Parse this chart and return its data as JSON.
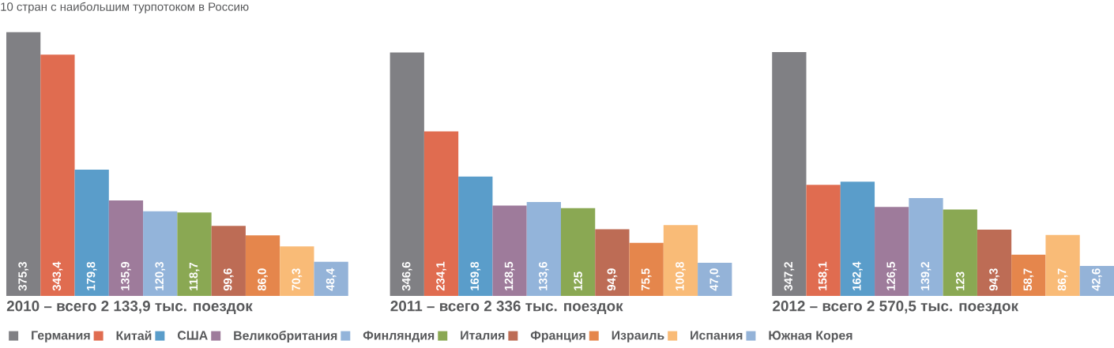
{
  "chart_data": [
    {
      "type": "bar",
      "title": "10 стран с наибольшим турпотоком в Россию",
      "xlabel": "2010 – всего 2 133,9 тыс. поездок",
      "legend": "bottom",
      "categories": [
        null
      ],
      "series": [
        {
          "name": "Германия",
          "color": "#808084",
          "values": [
            375.3
          ],
          "value_labels": [
            "375,3"
          ]
        },
        {
          "name": "Китай",
          "color": "#e06c50",
          "values": [
            343.4
          ],
          "value_labels": [
            "343,4"
          ]
        },
        {
          "name": "США",
          "color": "#5a9dca",
          "values": [
            179.8
          ],
          "value_labels": [
            "179,8"
          ]
        },
        {
          "name": "Великобритания",
          "color": "#9e7b9b",
          "values": [
            135.9
          ],
          "value_labels": [
            "135,9"
          ]
        },
        {
          "name": "Финляндия",
          "color": "#93b4da",
          "values": [
            120.3
          ],
          "value_labels": [
            "120,3"
          ]
        },
        {
          "name": "Италия",
          "color": "#8aa853",
          "values": [
            118.7
          ],
          "value_labels": [
            "118,7"
          ]
        },
        {
          "name": "Франция",
          "color": "#bd6c55",
          "values": [
            99.6
          ],
          "value_labels": [
            "99,6"
          ]
        },
        {
          "name": "Израиль",
          "color": "#e5864c",
          "values": [
            86.0
          ],
          "value_labels": [
            "86,0"
          ]
        },
        {
          "name": "Испания",
          "color": "#f9bb77",
          "values": [
            70.3
          ],
          "value_labels": [
            "70,3"
          ]
        },
        {
          "name": "Южная Корея",
          "color": "#94b3d8",
          "values": [
            48.4
          ],
          "value_labels": [
            "48,4"
          ]
        }
      ]
    },
    {
      "type": "bar",
      "xlabel": "2011 – всего 2 336 тыс. поездок",
      "categories": [
        null
      ],
      "series": [
        {
          "color": "#808084",
          "values": [
            346.6
          ],
          "value_labels": [
            "346,6"
          ]
        },
        {
          "color": "#e06c50",
          "values": [
            234.1
          ],
          "value_labels": [
            "234,1"
          ]
        },
        {
          "color": "#5a9dca",
          "values": [
            169.8
          ],
          "value_labels": [
            "169,8"
          ]
        },
        {
          "color": "#9e7b9b",
          "values": [
            128.5
          ],
          "value_labels": [
            "128,5"
          ]
        },
        {
          "color": "#93b4da",
          "values": [
            133.6
          ],
          "value_labels": [
            "133,6"
          ]
        },
        {
          "color": "#8aa853",
          "values": [
            125
          ],
          "value_labels": [
            "125"
          ]
        },
        {
          "color": "#bd6c55",
          "values": [
            94.9
          ],
          "value_labels": [
            "94,9"
          ]
        },
        {
          "color": "#e5864c",
          "values": [
            75.5
          ],
          "value_labels": [
            "75,5"
          ]
        },
        {
          "color": "#f9bb77",
          "values": [
            100.8
          ],
          "value_labels": [
            "100,8"
          ]
        },
        {
          "color": "#94b3d8",
          "values": [
            47.0
          ],
          "value_labels": [
            "47,0"
          ]
        }
      ]
    },
    {
      "type": "bar",
      "xlabel": "2012 – всего 2 570,5 тыс. поездок",
      "categories": [
        null
      ],
      "series": [
        {
          "color": "#808084",
          "values": [
            347.2
          ],
          "value_labels": [
            "347,2"
          ]
        },
        {
          "color": "#e06c50",
          "values": [
            158.1
          ],
          "value_labels": [
            "158,1"
          ]
        },
        {
          "color": "#5a9dca",
          "values": [
            162.4
          ],
          "value_labels": [
            "162,4"
          ]
        },
        {
          "color": "#9e7b9b",
          "values": [
            126.5
          ],
          "value_labels": [
            "126,5"
          ]
        },
        {
          "color": "#93b4da",
          "values": [
            139.2
          ],
          "value_labels": [
            "139,2"
          ]
        },
        {
          "color": "#8aa853",
          "values": [
            123
          ],
          "value_labels": [
            "123"
          ]
        },
        {
          "color": "#bd6c55",
          "values": [
            94.3
          ],
          "value_labels": [
            "94,3"
          ]
        },
        {
          "color": "#e5864c",
          "values": [
            58.7
          ],
          "value_labels": [
            "58,7"
          ]
        },
        {
          "color": "#f9bb77",
          "values": [
            86.7
          ],
          "value_labels": [
            "86,7"
          ]
        },
        {
          "color": "#94b3d8",
          "values": [
            42.6
          ],
          "value_labels": [
            "42,6"
          ]
        }
      ]
    }
  ]
}
